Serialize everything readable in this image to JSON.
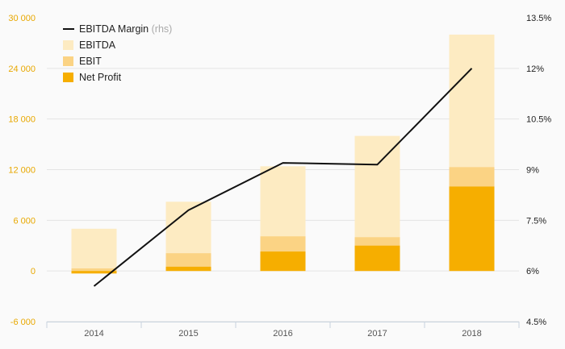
{
  "chart_data": {
    "type": "bar",
    "categories": [
      "2014",
      "2015",
      "2016",
      "2017",
      "2018"
    ],
    "series": [
      {
        "name": "EBITDA",
        "kind": "bar",
        "values": [
          5000,
          8200,
          12400,
          16000,
          28000
        ],
        "color": "#fdebc2"
      },
      {
        "name": "EBIT",
        "kind": "bar",
        "values": [
          300,
          2100,
          4100,
          4000,
          12300
        ],
        "color": "#fbd384"
      },
      {
        "name": "Net Profit",
        "kind": "bar",
        "values": [
          -300,
          500,
          2300,
          3000,
          10000
        ],
        "color": "#f6ae00"
      },
      {
        "name": "EBITDA Margin",
        "kind": "line",
        "axis": "right",
        "values": [
          5.55,
          7.8,
          9.2,
          9.15,
          12.0
        ],
        "color": "#111111"
      }
    ],
    "legend": {
      "items": [
        {
          "label": "EBITDA Margin",
          "note": "(rhs)",
          "kind": "line",
          "color": "#111111"
        },
        {
          "label": "EBITDA",
          "note": "",
          "kind": "bar",
          "color": "#fdebc2"
        },
        {
          "label": "EBIT",
          "note": "",
          "kind": "bar",
          "color": "#fbd384"
        },
        {
          "label": "Net Profit",
          "note": "",
          "kind": "bar",
          "color": "#f6ae00"
        }
      ],
      "position": "top-left"
    },
    "left_axis": {
      "ylim": [
        -6000,
        30000
      ],
      "ticks": [
        -6000,
        0,
        6000,
        12000,
        18000,
        24000,
        30000
      ],
      "tick_labels": [
        "-6 000",
        "0",
        "6 000",
        "12 000",
        "18 000",
        "24 000",
        "30 000"
      ],
      "color": "#e8a800"
    },
    "right_axis": {
      "ylim": [
        4.5,
        13.5
      ],
      "ticks": [
        4.5,
        6,
        7.5,
        9,
        10.5,
        12,
        13.5
      ],
      "tick_labels": [
        "4.5%",
        "6%",
        "7.5%",
        "9%",
        "10.5%",
        "12%",
        "13.5%"
      ]
    },
    "grid": true,
    "title": "",
    "xlabel": "",
    "ylabel": ""
  }
}
